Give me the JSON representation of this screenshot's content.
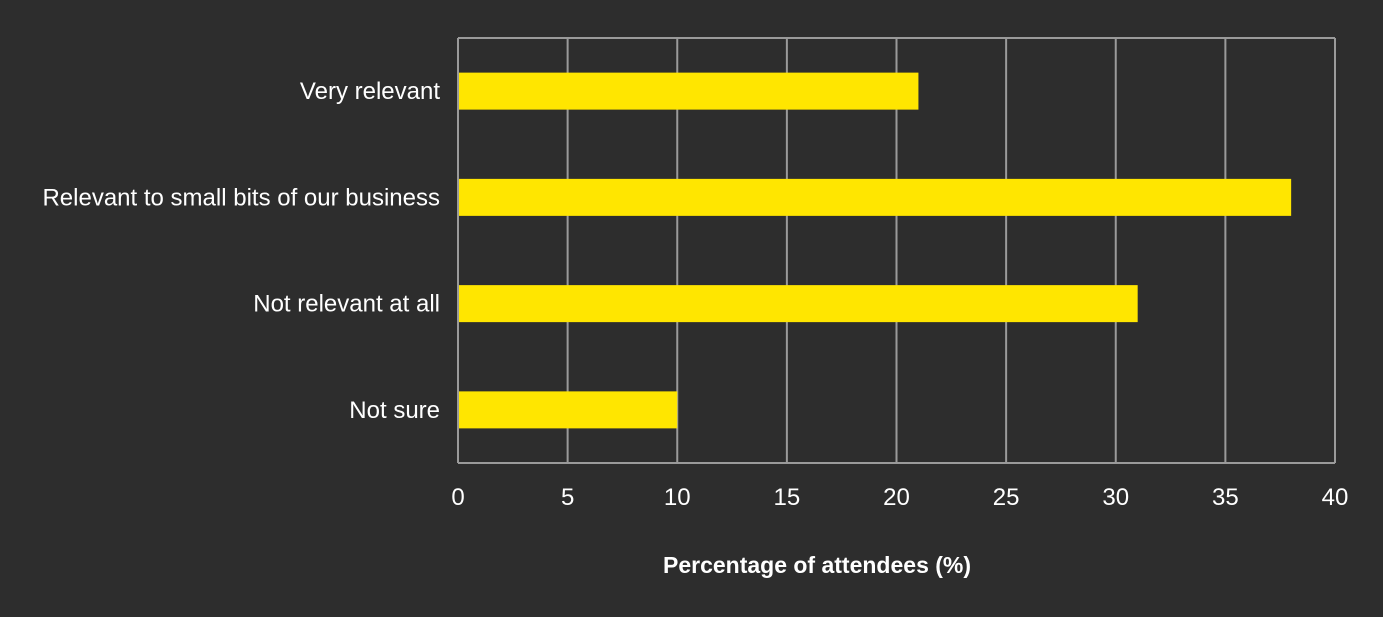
{
  "colors": {
    "background": "#2d2d2d",
    "bar": "#ffe600",
    "grid": "#9a9a9a",
    "text": "#ffffff"
  },
  "chart_data": {
    "type": "bar",
    "orientation": "horizontal",
    "categories": [
      "Very relevant",
      "Relevant to small bits of our business",
      "Not relevant at all",
      "Not sure"
    ],
    "values": [
      21,
      38,
      31,
      10
    ],
    "title": "",
    "xlabel": "Percentage of attendees (%)",
    "ylabel": "",
    "xlim": [
      0,
      40
    ],
    "xticks": [
      0,
      5,
      10,
      15,
      20,
      25,
      30,
      35,
      40
    ],
    "grid": true,
    "legend": "none"
  }
}
